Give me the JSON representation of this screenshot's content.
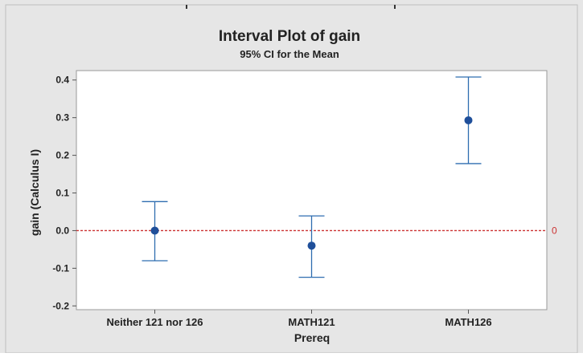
{
  "chart_data": {
    "type": "interval",
    "title": "Interval Plot of gain",
    "subtitle": "95% CI for the Mean",
    "xlabel": "Prereq",
    "ylabel": "gain (Calculus I)",
    "categories": [
      "Neither 121 nor 126",
      "MATH121",
      "MATH126"
    ],
    "mean": [
      0.0,
      -0.04,
      0.293
    ],
    "lower": [
      -0.08,
      -0.124,
      0.178
    ],
    "upper": [
      0.077,
      0.039,
      0.408
    ],
    "ylim": [
      -0.21,
      0.425
    ],
    "yticks": [
      0.4,
      0.3,
      0.2,
      0.1,
      0.0,
      -0.1,
      -0.2
    ],
    "ytick_labels": [
      "0.4",
      "0.3",
      "0.2",
      "0.1",
      "0.0",
      "-0.1",
      "-0.2"
    ],
    "reference_line": {
      "value": 0,
      "label": "0",
      "color": "#cc3333"
    },
    "grid": false,
    "legend": "none",
    "colors": {
      "series": "#2e6db0",
      "frame_bg": "#e6e6e6",
      "plot_bg": "#ffffff",
      "ref": "#cc3333",
      "text": "#222222"
    }
  }
}
